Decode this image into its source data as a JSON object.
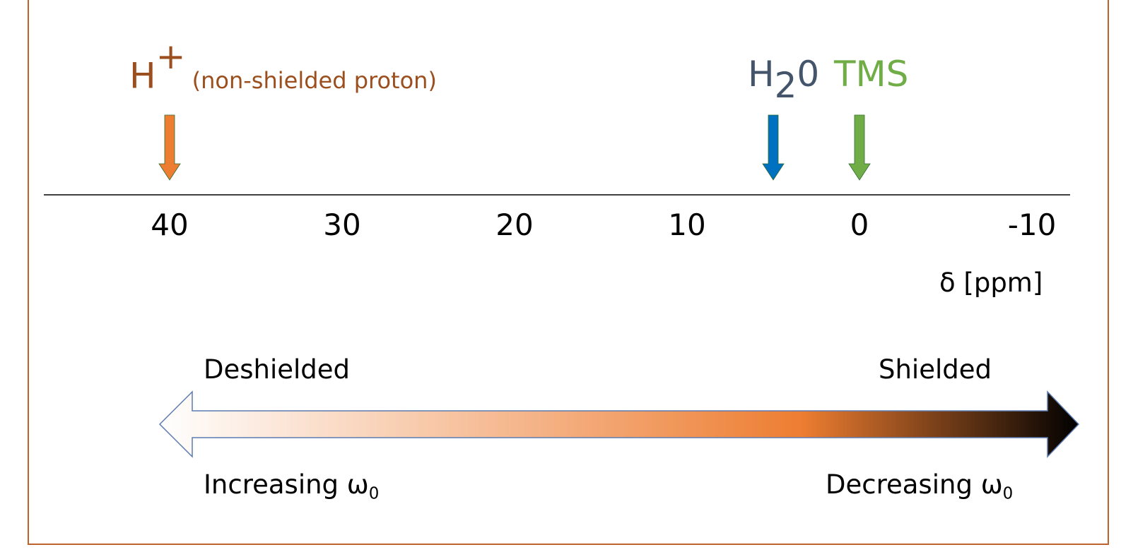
{
  "figure": {
    "frame_color": "#c0622b",
    "markers": [
      {
        "id": "h-plus",
        "symbol": "H",
        "superscript": "+",
        "note": "(non-shielded proton)",
        "ppm": 40,
        "color": "#ed7d31",
        "label_color": "#9c4f1e"
      },
      {
        "id": "water",
        "symbol": "H",
        "subscript": "2",
        "suffix": "0",
        "ppm": 5,
        "color": "#0070c0",
        "label_color": "#44546a"
      },
      {
        "id": "tms",
        "symbol": "TMS",
        "ppm": 0,
        "color": "#70ad47",
        "label_color": "#70ad47"
      }
    ],
    "axis": {
      "ticks": [
        "40",
        "30",
        "20",
        "10",
        "0",
        "-10"
      ],
      "range": [
        40,
        -10
      ],
      "unit_label": "δ [ppm]"
    },
    "gradient_arrow": {
      "left_label": "Deshielded",
      "right_label": "Shielded",
      "left_bottom_label": "Increasing ω",
      "left_bottom_sub": "0",
      "right_bottom_label": "Decreasing ω",
      "right_bottom_sub": "0",
      "colors": {
        "start": "#ffffff",
        "middle": "#ed7d31",
        "end": "#000000",
        "outline": "#5b7bb0"
      }
    }
  }
}
